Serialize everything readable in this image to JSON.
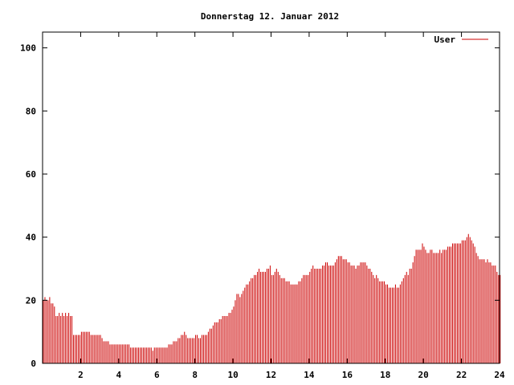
{
  "chart_data": {
    "type": "bar",
    "title": "Donnerstag 12. Januar 2012",
    "xlabel": "",
    "ylabel": "",
    "xlim": [
      0,
      24
    ],
    "ylim": [
      0,
      105
    ],
    "xticks": [
      2,
      4,
      6,
      8,
      10,
      12,
      14,
      16,
      18,
      20,
      22,
      24
    ],
    "yticks": [
      0,
      20,
      40,
      60,
      80,
      100
    ],
    "grid": false,
    "legend_position": "top-right",
    "color": "#cc0000",
    "series": [
      {
        "name": "User",
        "x_start": 0,
        "x_step": 0.0833,
        "values": [
          20,
          21,
          20,
          20,
          21,
          19,
          19,
          18,
          15,
          15,
          16,
          15,
          16,
          15,
          16,
          15,
          16,
          15,
          15,
          9,
          9,
          9,
          9,
          9,
          10,
          10,
          10,
          10,
          10,
          10,
          9,
          9,
          9,
          9,
          9,
          9,
          9,
          8,
          7,
          7,
          7,
          7,
          6,
          6,
          6,
          6,
          6,
          6,
          6,
          6,
          6,
          6,
          6,
          6,
          6,
          5,
          5,
          5,
          5,
          5,
          5,
          5,
          5,
          5,
          5,
          5,
          5,
          5,
          5,
          4,
          5,
          5,
          5,
          5,
          5,
          5,
          5,
          5,
          5,
          6,
          6,
          6,
          7,
          7,
          7,
          8,
          8,
          9,
          9,
          10,
          9,
          8,
          8,
          8,
          8,
          8,
          9,
          9,
          8,
          8,
          9,
          9,
          9,
          9,
          10,
          11,
          11,
          12,
          13,
          13,
          13,
          14,
          14,
          15,
          15,
          15,
          15,
          16,
          16,
          17,
          18,
          20,
          22,
          22,
          21,
          22,
          23,
          24,
          25,
          25,
          26,
          27,
          27,
          28,
          28,
          29,
          30,
          29,
          29,
          29,
          29,
          30,
          30,
          31,
          28,
          28,
          29,
          30,
          29,
          28,
          27,
          27,
          27,
          26,
          26,
          26,
          25,
          25,
          25,
          25,
          25,
          26,
          26,
          27,
          28,
          28,
          28,
          28,
          29,
          30,
          31,
          30,
          30,
          30,
          30,
          30,
          31,
          31,
          32,
          32,
          31,
          31,
          31,
          31,
          32,
          33,
          34,
          34,
          34,
          33,
          33,
          33,
          32,
          32,
          31,
          31,
          31,
          30,
          31,
          31,
          32,
          32,
          32,
          32,
          31,
          30,
          30,
          29,
          28,
          27,
          28,
          27,
          26,
          26,
          26,
          26,
          25,
          25,
          24,
          24,
          24,
          24,
          25,
          24,
          24,
          25,
          26,
          27,
          28,
          29,
          28,
          30,
          30,
          32,
          34,
          36,
          36,
          36,
          36,
          38,
          37,
          36,
          35,
          35,
          36,
          36,
          35,
          35,
          35,
          35,
          36,
          35,
          36,
          36,
          36,
          37,
          37,
          37,
          38,
          38,
          38,
          38,
          38,
          38,
          39,
          39,
          39,
          40,
          41,
          40,
          39,
          38,
          37,
          35,
          34,
          33,
          33,
          33,
          33,
          32,
          33,
          32,
          32,
          31,
          31,
          31,
          29,
          28,
          28
        ]
      }
    ]
  }
}
